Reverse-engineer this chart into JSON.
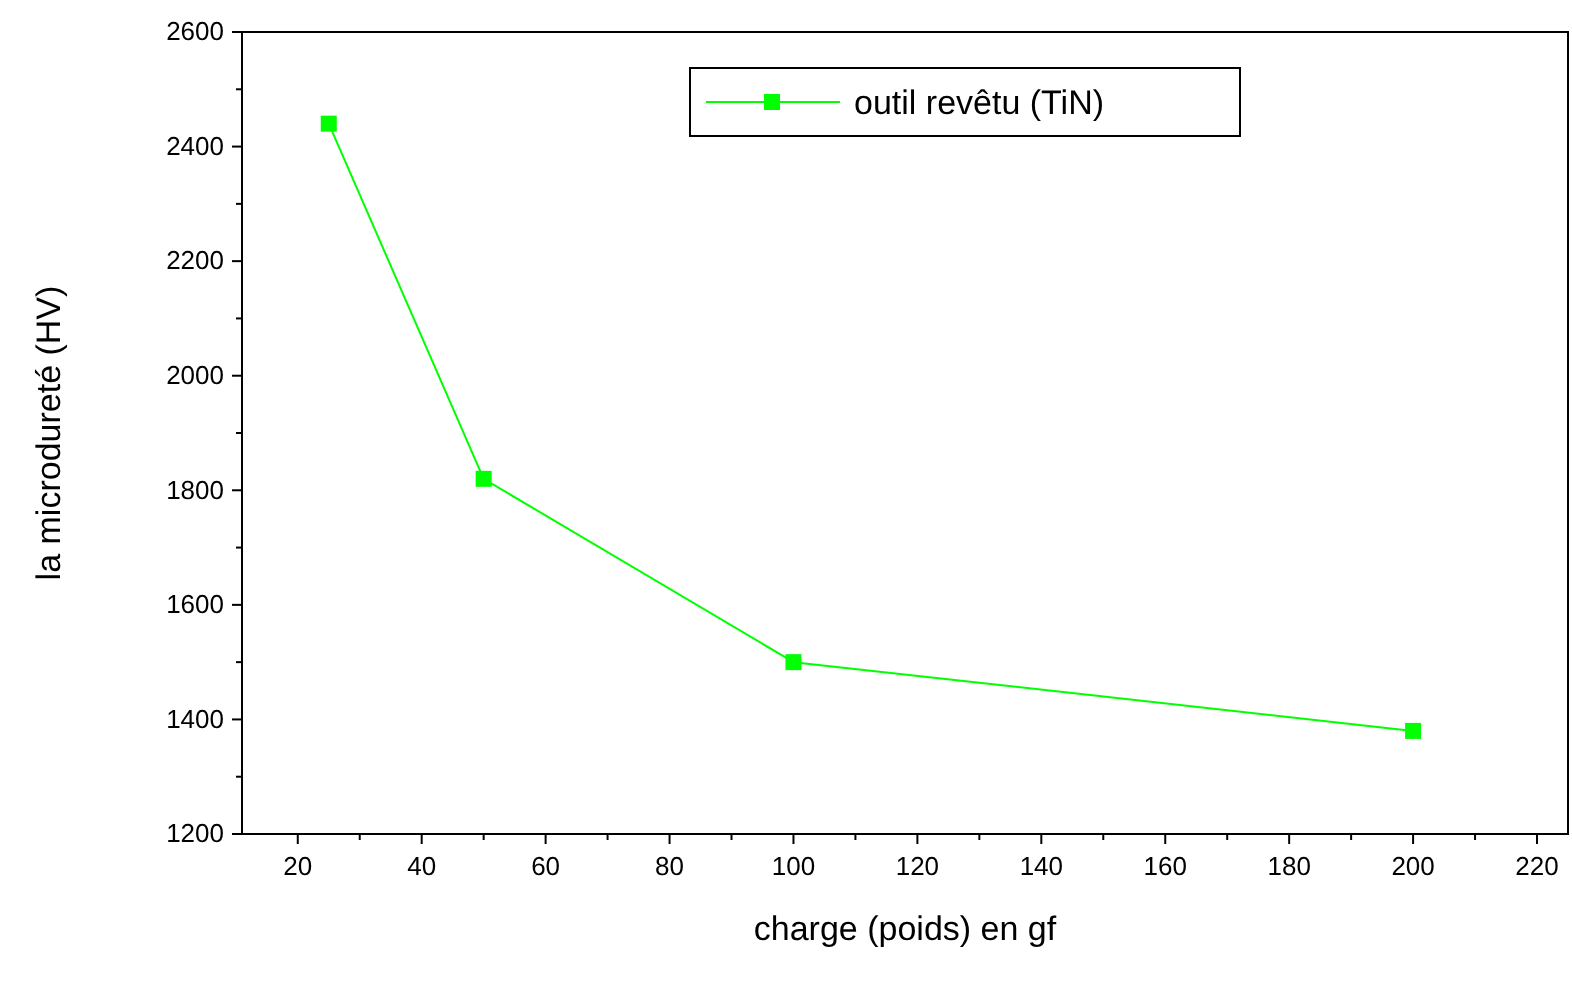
{
  "chart_data": {
    "type": "line",
    "xlabel": "charge (poids)  en gf",
    "ylabel": "la microdureté (HV)",
    "x": [
      25,
      50,
      100,
      200
    ],
    "series": [
      {
        "name": "outil revêtu (TiN)",
        "color": "#00ff00",
        "values": [
          2440,
          1820,
          1500,
          1380
        ]
      }
    ],
    "xlim": [
      11,
      225
    ],
    "xticks": [
      20,
      {
        "value": 30,
        "label": null
      },
      40,
      {
        "value": 50,
        "label": null
      },
      60,
      {
        "value": 70,
        "label": null
      },
      80,
      {
        "value": 90,
        "label": null
      },
      100,
      {
        "value": 110,
        "label": null
      },
      120,
      {
        "value": 130,
        "label": null
      },
      140,
      {
        "value": 150,
        "label": null
      },
      160,
      {
        "value": 170,
        "label": null
      },
      180,
      {
        "value": 190,
        "label": null
      },
      200,
      {
        "value": 210,
        "label": null
      },
      220
    ],
    "ylim": [
      1200,
      2600
    ],
    "yticks": [
      1200,
      {
        "value": 1300,
        "label": null
      },
      1400,
      {
        "value": 1500,
        "label": null
      },
      1600,
      {
        "value": 1700,
        "label": null
      },
      1800,
      {
        "value": 1900,
        "label": null
      },
      2000,
      {
        "value": 2100,
        "label": null
      },
      2200,
      {
        "value": 2300,
        "label": null
      },
      2400,
      {
        "value": 2500,
        "label": null
      },
      2600
    ],
    "marker": "square",
    "line_style": "solid",
    "legend": "top",
    "grid": false
  }
}
